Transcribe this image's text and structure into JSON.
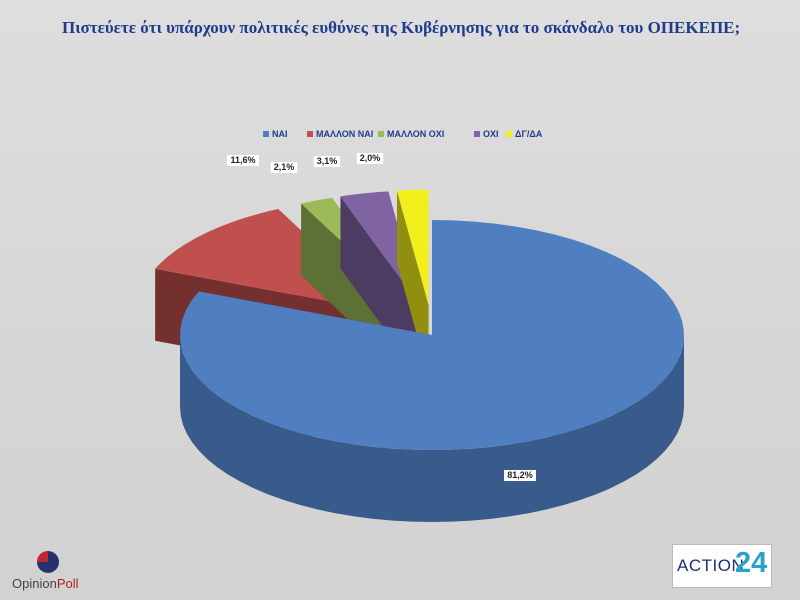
{
  "chart_data": {
    "type": "pie",
    "title": "Πιστεύετε ότι υπάρχουν πολιτικές ευθύνες της Κυβέρνησης για το σκάνδαλο του ΟΠΕΚΕΠΕ;",
    "categories": [
      "ΝΑΙ",
      "ΜΑΛΛΟΝ ΝΑΙ",
      "ΜΑΛΛΟΝ ΟΧΙ",
      "ΟΧΙ",
      "ΔΓ/ΔΑ"
    ],
    "values": [
      81.2,
      11.6,
      2.1,
      3.1,
      2.0
    ],
    "labels": [
      "81,2%",
      "11,6%",
      "2,1%",
      "3,1%",
      "2,0%"
    ],
    "colors": [
      "#4f7fc1",
      "#c0504d",
      "#9bbb59",
      "#8064a2",
      "#f2ef1a"
    ],
    "exploded": true,
    "three_d": true,
    "legend_position": "top"
  },
  "logos": {
    "left_first": "Opinion",
    "left_second": "Poll",
    "right_text": "ACTION",
    "right_number": "24"
  }
}
